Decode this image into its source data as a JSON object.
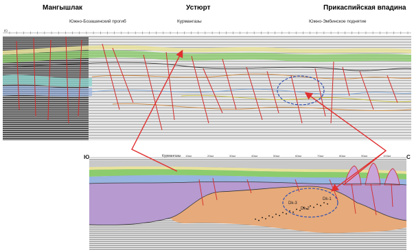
{
  "header": {
    "regions": [
      {
        "name": "Мангышлак"
      },
      {
        "name": "Устюрт"
      },
      {
        "name": "Прикаспийская впадина"
      }
    ],
    "sub_labels": [
      {
        "text": "Южно-Бозашинский прогиб"
      },
      {
        "text": "Курмангазы"
      },
      {
        "text": "Южно-Эмбинское поднятие"
      }
    ]
  },
  "top_section": {
    "corner_label": "Ю",
    "axis_tick_count": 58,
    "ellipse_color": "#2f4fb0",
    "fault_color": "#d42a2a"
  },
  "bottom_section": {
    "left_label": "Ю",
    "right_label": "С",
    "well_label": "Курмангазы",
    "axis_marks": [
      "10км",
      "20км",
      "30км",
      "40км",
      "50км",
      "60км",
      "70км",
      "80км",
      "90км",
      "100км"
    ],
    "annotations": {
      "dk1": "Dk-1",
      "dk2": "Dk-2",
      "dk3": "Dk-3"
    },
    "layer_colors": {
      "top_gray": "#c9c9c9",
      "yellow": "#e9e29a",
      "green": "#8ccc6e",
      "blue": "#98b4e0",
      "purple": "#b69ad0",
      "orange": "#e7aa7a"
    }
  },
  "arrows": {
    "color": "#e03030"
  }
}
